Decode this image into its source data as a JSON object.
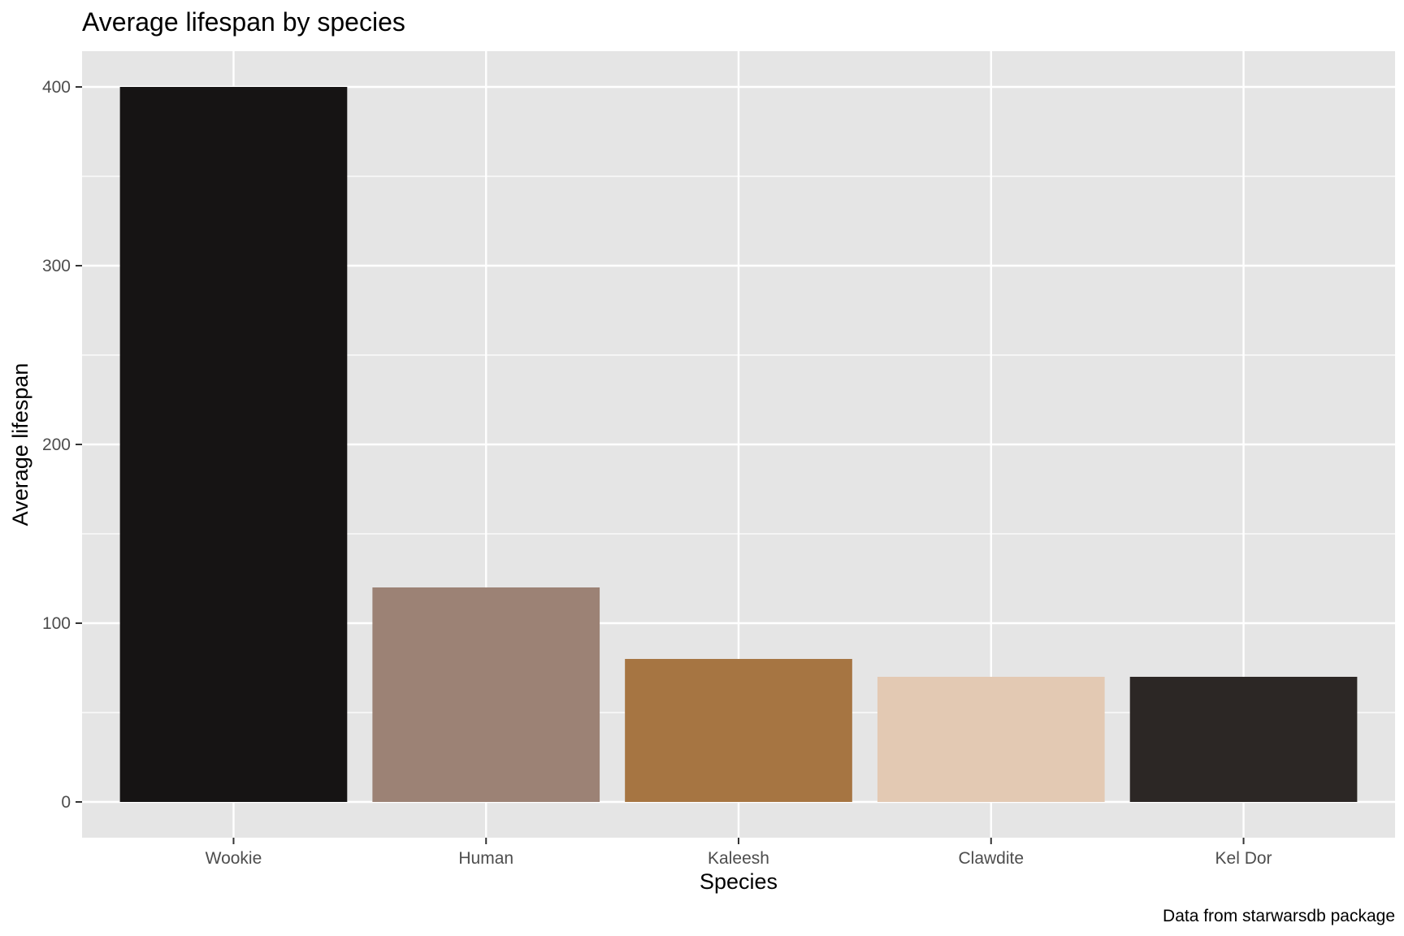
{
  "chart_data": {
    "type": "bar",
    "title": "Average lifespan by species",
    "xlabel": "Species",
    "ylabel": "Average lifespan",
    "caption": "Data from starwarsdb package",
    "categories": [
      "Wookie",
      "Human",
      "Kaleesh",
      "Clawdite",
      "Kel Dor"
    ],
    "values": [
      400,
      120,
      80,
      70,
      70
    ],
    "bar_colors": [
      "#161414",
      "#9c8275",
      "#a67542",
      "#e3c9b3",
      "#2c2725"
    ],
    "ylim": [
      -20,
      420
    ],
    "yticks": [
      0,
      100,
      200,
      300,
      400
    ],
    "ytick_labels": [
      "0",
      "100",
      "200",
      "300",
      "400"
    ],
    "y_minor_ticks": [
      50,
      150,
      250,
      350
    ],
    "grid": true,
    "panel_background": "#e5e5e5",
    "grid_color": "#ffffff",
    "legend": "none"
  }
}
